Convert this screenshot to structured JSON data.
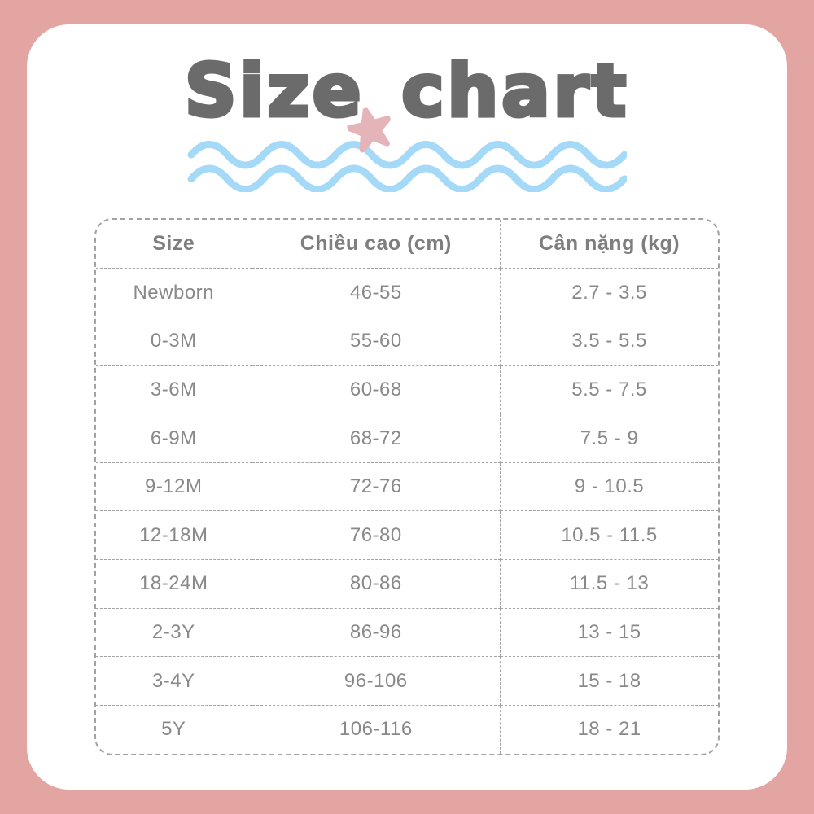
{
  "title": {
    "word1": "Size",
    "word2": "chart"
  },
  "decor": {
    "star_icon_color": "#e4b4b9",
    "wave_color": "#a4d9f7"
  },
  "colors": {
    "frame_pink": "#e2a5a2",
    "card_white": "#ffffff",
    "title_gray": "#6b6b6b",
    "table_text_gray": "#898989",
    "dashed_border_gray": "#a2a2a2"
  },
  "chart_data": {
    "type": "table",
    "title": "Size chart",
    "columns": [
      "Size",
      "Chiều cao (cm)",
      "Cân nặng (kg)"
    ],
    "rows": [
      [
        "Newborn",
        "46-55",
        "2.7 - 3.5"
      ],
      [
        "0-3M",
        "55-60",
        "3.5 - 5.5"
      ],
      [
        "3-6M",
        "60-68",
        "5.5 - 7.5"
      ],
      [
        "6-9M",
        "68-72",
        "7.5 - 9"
      ],
      [
        "9-12M",
        "72-76",
        "9 - 10.5"
      ],
      [
        "12-18M",
        "76-80",
        "10.5 - 11.5"
      ],
      [
        "18-24M",
        "80-86",
        "11.5 - 13"
      ],
      [
        "2-3Y",
        "86-96",
        "13 - 15"
      ],
      [
        "3-4Y",
        "96-106",
        "15 - 18"
      ],
      [
        "5Y",
        "106-116",
        "18 - 21"
      ]
    ]
  }
}
